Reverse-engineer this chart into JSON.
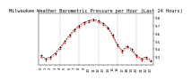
{
  "title": "Milwaukee Weather Barometric Pressure per Hour (Last 24 Hours)",
  "hours": [
    0,
    1,
    2,
    3,
    4,
    5,
    6,
    7,
    8,
    9,
    10,
    11,
    12,
    13,
    14,
    15,
    16,
    17,
    18,
    19,
    20,
    21,
    22,
    23
  ],
  "pressure_black": [
    29.32,
    29.28,
    29.3,
    29.35,
    29.42,
    29.5,
    29.58,
    29.65,
    29.7,
    29.74,
    29.76,
    29.78,
    29.76,
    29.73,
    29.68,
    29.58,
    29.46,
    29.38,
    29.44,
    29.4,
    29.32,
    29.28,
    29.3,
    29.26
  ],
  "pressure_red": [
    29.3,
    29.26,
    29.28,
    29.33,
    29.4,
    29.48,
    29.56,
    29.63,
    29.68,
    29.72,
    29.74,
    29.76,
    29.74,
    29.71,
    29.66,
    29.56,
    29.44,
    29.36,
    29.42,
    29.38,
    29.3,
    29.26,
    29.28,
    29.24
  ],
  "ylim": [
    29.2,
    29.85
  ],
  "yticks": [
    29.3,
    29.4,
    29.5,
    29.6,
    29.7,
    29.8
  ],
  "ytick_labels": [
    "9.3",
    "9.4",
    "9.5",
    "9.6",
    "9.7",
    "9.8"
  ],
  "bg_color": "#ffffff",
  "black_color": "#000000",
  "red_color": "#ff0000",
  "title_fontsize": 3.8,
  "tick_fontsize": 2.8,
  "vgrid_hours": [
    4,
    8,
    12,
    16,
    20
  ],
  "xlabel_hours": [
    0,
    1,
    2,
    3,
    4,
    5,
    6,
    7,
    8,
    9,
    10,
    11,
    12,
    13,
    14,
    15,
    16,
    17,
    18,
    19,
    20,
    21,
    22,
    23
  ]
}
